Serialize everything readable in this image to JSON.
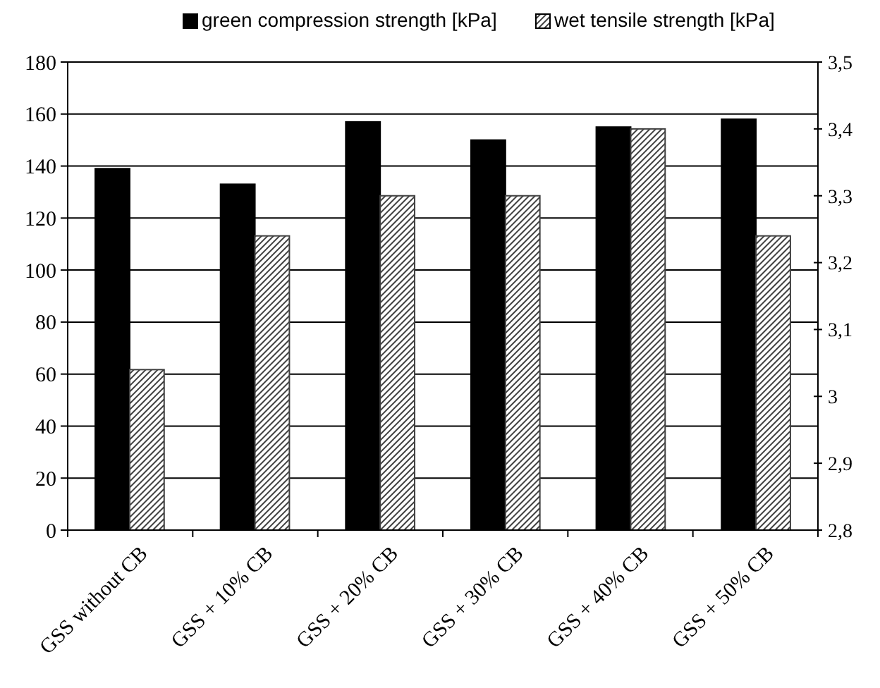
{
  "chart_data": {
    "type": "bar",
    "categories": [
      "GSS without CB",
      "GSS + 10% CB",
      "GSS + 20% CB",
      "GSS + 30% CB",
      "GSS + 40% CB",
      "GSS + 50% CB"
    ],
    "series": [
      {
        "name": "green compression strength [kPa]",
        "color": "#000000",
        "values": [
          139,
          133,
          157,
          150,
          155,
          158
        ]
      },
      {
        "name": "wet tensile strength [kPa]",
        "color": "#404040",
        "axis": "y2",
        "values": [
          3.04,
          3.24,
          3.3,
          3.3,
          3.4,
          3.24
        ]
      }
    ],
    "ylim": [
      0,
      180
    ],
    "yticks": [
      0,
      20,
      40,
      60,
      80,
      100,
      120,
      140,
      160,
      180
    ],
    "y2lim": [
      2.8,
      3.5
    ],
    "y2ticks": [
      {
        "value": 2.8,
        "label": "2,8"
      },
      {
        "value": 2.9,
        "label": "2,9"
      },
      {
        "value": 3,
        "label": "3"
      },
      {
        "value": 3.1,
        "label": "3,1"
      },
      {
        "value": 3.2,
        "label": "3,2"
      },
      {
        "value": 3.3,
        "label": "3,3"
      },
      {
        "value": 3.4,
        "label": "3,4"
      },
      {
        "value": 3.5,
        "label": "3,5"
      }
    ],
    "grid": "y",
    "legend": "top"
  }
}
